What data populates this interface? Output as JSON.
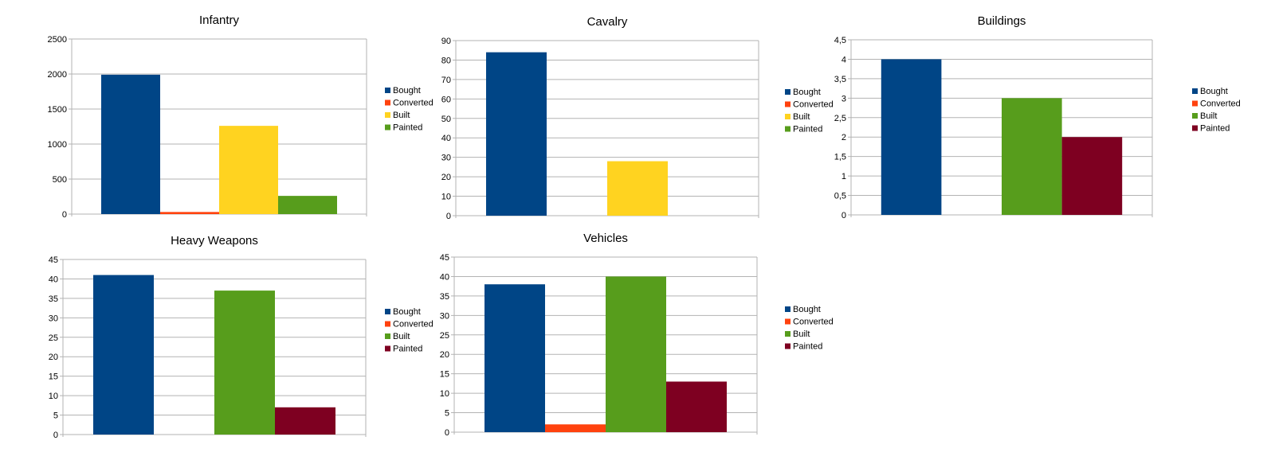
{
  "chart_data": [
    {
      "type": "bar",
      "title": "Infantry",
      "series": [
        {
          "name": "Bought",
          "value": 1990
        },
        {
          "name": "Converted",
          "value": 30
        },
        {
          "name": "Built",
          "value": 1260
        },
        {
          "name": "Painted",
          "value": 260
        }
      ],
      "colors": [
        "#004586",
        "#ff420e",
        "#ffd320",
        "#579d1c"
      ],
      "ylim": [
        0,
        2500
      ],
      "yticks": [
        "0",
        "500",
        "1000",
        "1500",
        "2000",
        "2500"
      ],
      "grid": true,
      "legend": "right"
    },
    {
      "type": "bar",
      "title": "Cavalry",
      "series": [
        {
          "name": "Bought",
          "value": 84
        },
        {
          "name": "Converted",
          "value": 0
        },
        {
          "name": "Built",
          "value": 28
        },
        {
          "name": "Painted",
          "value": 0
        }
      ],
      "colors": [
        "#004586",
        "#ff420e",
        "#ffd320",
        "#579d1c"
      ],
      "ylim": [
        0,
        90
      ],
      "yticks": [
        "0",
        "10",
        "20",
        "30",
        "40",
        "50",
        "60",
        "70",
        "80",
        "90"
      ],
      "grid": true,
      "legend": "right"
    },
    {
      "type": "bar",
      "title": "Buildings",
      "series": [
        {
          "name": "Bought",
          "value": 4
        },
        {
          "name": "Converted",
          "value": 0
        },
        {
          "name": "Built",
          "value": 3
        },
        {
          "name": "Painted",
          "value": 2
        }
      ],
      "colors": [
        "#004586",
        "#ff420e",
        "#579d1c",
        "#7e0021"
      ],
      "ylim": [
        0,
        4.5
      ],
      "yticks": [
        "0",
        "0,5",
        "1",
        "1,5",
        "2",
        "2,5",
        "3",
        "3,5",
        "4",
        "4,5"
      ],
      "grid": true,
      "legend": "right"
    },
    {
      "type": "bar",
      "title": "Heavy Weapons",
      "series": [
        {
          "name": "Bought",
          "value": 41
        },
        {
          "name": "Converted",
          "value": 0
        },
        {
          "name": "Built",
          "value": 37
        },
        {
          "name": "Painted",
          "value": 7
        }
      ],
      "colors": [
        "#004586",
        "#ff420e",
        "#579d1c",
        "#7e0021"
      ],
      "ylim": [
        0,
        45
      ],
      "yticks": [
        "0",
        "5",
        "10",
        "15",
        "20",
        "25",
        "30",
        "35",
        "40",
        "45"
      ],
      "grid": true,
      "legend": "right"
    },
    {
      "type": "bar",
      "title": "Vehicles",
      "series": [
        {
          "name": "Bought",
          "value": 38
        },
        {
          "name": "Converted",
          "value": 2
        },
        {
          "name": "Built",
          "value": 40
        },
        {
          "name": "Painted",
          "value": 13
        }
      ],
      "colors": [
        "#004586",
        "#ff420e",
        "#579d1c",
        "#7e0021"
      ],
      "ylim": [
        0,
        45
      ],
      "yticks": [
        "0",
        "5",
        "10",
        "15",
        "20",
        "25",
        "30",
        "35",
        "40",
        "45"
      ],
      "grid": true,
      "legend": "right"
    }
  ]
}
